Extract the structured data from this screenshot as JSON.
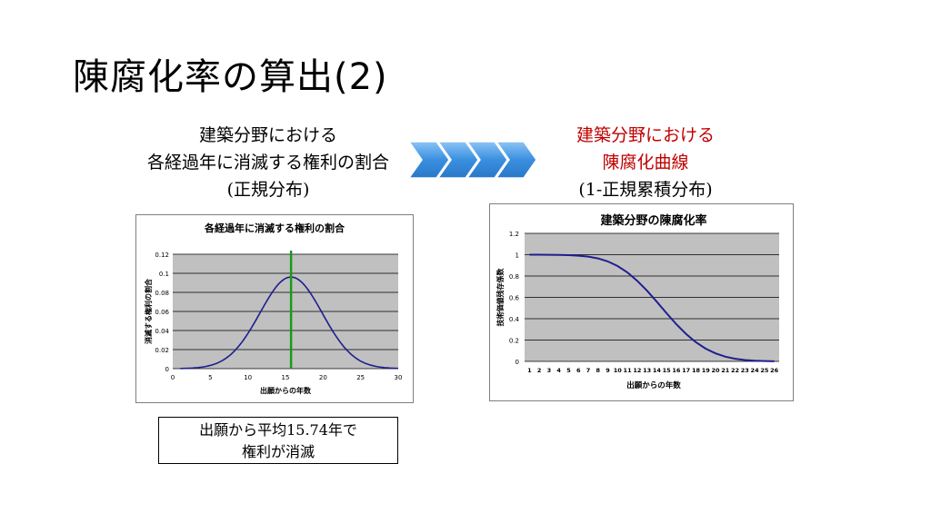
{
  "slide": {
    "title": "陳腐化率の算出(2)"
  },
  "left_caption": {
    "line1": "建築分野における",
    "line2": "各経過年に消滅する権利の割合",
    "line3": "(正規分布)"
  },
  "right_caption": {
    "line1": "建築分野における",
    "line2": "陳腐化曲線",
    "line3": "(1-正規累積分布)"
  },
  "note": {
    "line1": "出願から平均15.74年で",
    "line2": "権利が消滅"
  },
  "colors": {
    "accent_red": "#c00000",
    "arrow_blue": "#4a90e2",
    "curve_navy": "#1f1f8f",
    "mean_line_green": "#1a9a1a",
    "plot_gray": "#c0c0c0"
  },
  "chart_data": [
    {
      "type": "line",
      "title": "各経過年に消滅する権利の割合",
      "xlabel": "出願からの年数",
      "ylabel": "消滅する権利の割合",
      "xlim": [
        0,
        30
      ],
      "ylim": [
        0,
        0.12
      ],
      "x_ticks": [
        "0",
        "5",
        "10",
        "15",
        "20",
        "25",
        "30"
      ],
      "y_ticks": [
        "0",
        "0.02",
        "0.04",
        "0.06",
        "0.08",
        "0.1",
        "0.12"
      ],
      "distribution": {
        "mean": 15.74,
        "sd": 4.15
      },
      "mean_line_x": 15.74,
      "series": [
        {
          "x": [
            1,
            2,
            3,
            4,
            5,
            6,
            7,
            8,
            9,
            10,
            11,
            12,
            13,
            14,
            15,
            16,
            17,
            18,
            19,
            20,
            21,
            22,
            23,
            24,
            25,
            26,
            27,
            28,
            29,
            30
          ],
          "values": [
            0.0004,
            0.0011,
            0.0024,
            0.0048,
            0.0089,
            0.0152,
            0.0239,
            0.0346,
            0.046,
            0.0633,
            0.0749,
            0.0847,
            0.0918,
            0.0955,
            0.0961,
            0.0946,
            0.0913,
            0.0839,
            0.0738,
            0.062,
            0.0495,
            0.0377,
            0.0273,
            0.0188,
            0.0122,
            0.0076,
            0.0044,
            0.0024,
            0.0012,
            0.0006
          ]
        }
      ],
      "grid": true
    },
    {
      "type": "line",
      "title": "建築分野の陳腐化率",
      "xlabel": "出願からの年数",
      "ylabel": "技術価値残存係数",
      "ylim": [
        0,
        1.2
      ],
      "categories": [
        "1",
        "2",
        "3",
        "4",
        "5",
        "6",
        "7",
        "8",
        "9",
        "10",
        "11",
        "12",
        "13",
        "14",
        "15",
        "16",
        "17",
        "18",
        "19",
        "20",
        "21",
        "22",
        "23",
        "24",
        "25",
        "26"
      ],
      "y_ticks": [
        "0",
        "0.2",
        "0.4",
        "0.6",
        "0.8",
        "1",
        "1.2"
      ],
      "series": [
        {
          "values": [
            1.0,
            1.0,
            0.999,
            0.998,
            0.996,
            0.991,
            0.982,
            0.965,
            0.937,
            0.894,
            0.834,
            0.756,
            0.663,
            0.559,
            0.451,
            0.348,
            0.256,
            0.179,
            0.119,
            0.075,
            0.044,
            0.025,
            0.013,
            0.006,
            0.003,
            0.001
          ]
        }
      ],
      "grid": true
    }
  ]
}
